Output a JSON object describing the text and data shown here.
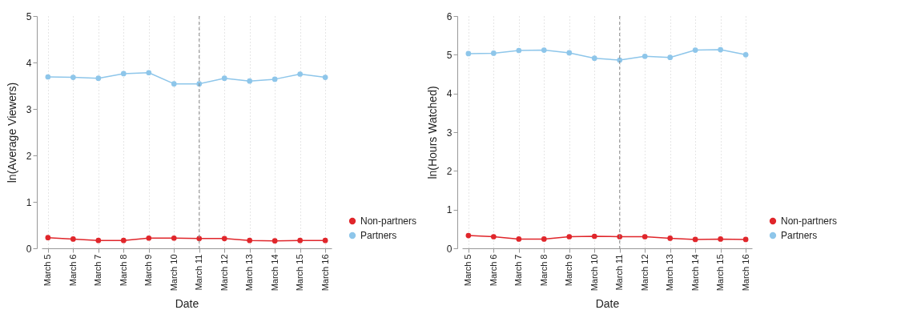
{
  "chart_data": [
    {
      "type": "line",
      "xlabel": "Date",
      "ylabel": "ln(Average Viewers)",
      "categories": [
        "March 5",
        "March 6",
        "March 7",
        "March 8",
        "March 9",
        "March 10",
        "March 11",
        "March 12",
        "March 13",
        "March 14",
        "March 15",
        "March 16"
      ],
      "series": [
        {
          "name": "Non-partners",
          "color": "#e0262b",
          "values": [
            0.23,
            0.2,
            0.17,
            0.17,
            0.22,
            0.22,
            0.21,
            0.21,
            0.17,
            0.16,
            0.17,
            0.17
          ]
        },
        {
          "name": "Partners",
          "color": "#8ec6ea",
          "values": [
            3.69,
            3.68,
            3.66,
            3.76,
            3.78,
            3.54,
            3.54,
            3.66,
            3.6,
            3.64,
            3.75,
            3.68
          ]
        }
      ],
      "ylim": [
        0,
        5
      ],
      "yticks": [
        0,
        1,
        2,
        3,
        4,
        5
      ],
      "ref_lines": [
        {
          "axis": "x",
          "value": "March 11",
          "color": "#888888",
          "line_style": "dashed"
        }
      ],
      "grid": "x",
      "legend": "bottom right",
      "marker": "circle"
    },
    {
      "type": "line",
      "xlabel": "Date",
      "ylabel": "ln(Hours Watched)",
      "categories": [
        "March 5",
        "March 6",
        "March 7",
        "March 8",
        "March 9",
        "March 10",
        "March 11",
        "March 12",
        "March 13",
        "March 14",
        "March 15",
        "March 16"
      ],
      "series": [
        {
          "name": "Non-partners",
          "color": "#e0262b",
          "values": [
            0.33,
            0.3,
            0.24,
            0.24,
            0.3,
            0.31,
            0.3,
            0.3,
            0.26,
            0.23,
            0.24,
            0.23
          ]
        },
        {
          "name": "Partners",
          "color": "#8ec6ea",
          "values": [
            5.03,
            5.04,
            5.11,
            5.12,
            5.05,
            4.91,
            4.86,
            4.96,
            4.93,
            5.12,
            5.13,
            5.0
          ]
        }
      ],
      "ylim": [
        0,
        6
      ],
      "yticks": [
        0,
        1,
        2,
        3,
        4,
        5,
        6
      ],
      "ref_lines": [
        {
          "axis": "x",
          "value": "March 11",
          "color": "#888888",
          "line_style": "dashed"
        }
      ],
      "grid": "x",
      "legend": "bottom right",
      "marker": "circle"
    }
  ]
}
